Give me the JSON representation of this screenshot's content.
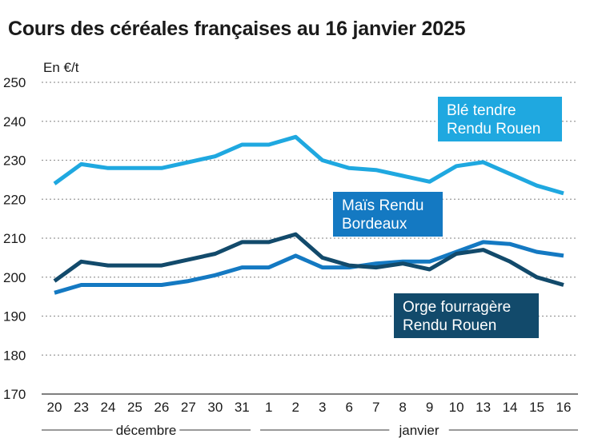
{
  "chart_data": {
    "type": "line",
    "title": "Cours des céréales françaises au 16 janvier 2025",
    "ylabel": "En €/t",
    "xlabel": "",
    "ylim": [
      170,
      250
    ],
    "yticks": [
      170,
      180,
      190,
      200,
      210,
      220,
      230,
      240,
      250
    ],
    "grid": true,
    "categories": [
      "20",
      "23",
      "24",
      "25",
      "26",
      "27",
      "30",
      "31",
      "1",
      "2",
      "3",
      "6",
      "7",
      "8",
      "9",
      "10",
      "13",
      "14",
      "15",
      "16"
    ],
    "months": [
      {
        "label": "décembre",
        "from": 0,
        "to": 7
      },
      {
        "label": "janvier",
        "from": 8,
        "to": 19
      }
    ],
    "series": [
      {
        "name": "Blé tendre Rendu Rouen",
        "label_lines": [
          "Blé tendre",
          "Rendu Rouen"
        ],
        "color": "#1fa8e0",
        "values": [
          224,
          229,
          228,
          228,
          228,
          229.5,
          231,
          234,
          234,
          236,
          230,
          228,
          227.5,
          226,
          224.5,
          228.5,
          229.5,
          226.5,
          223.5,
          221.5
        ]
      },
      {
        "name": "Maïs Rendu Bordeaux",
        "label_lines": [
          "Maïs Rendu",
          "Bordeaux"
        ],
        "color": "#1479c2",
        "values": [
          196,
          198,
          198,
          198,
          198,
          199,
          200.5,
          202.5,
          202.5,
          205.5,
          202.5,
          202.5,
          203.5,
          204,
          204,
          206.5,
          209,
          208.5,
          206.5,
          205.5
        ]
      },
      {
        "name": "Orge fourragère Rendu Rouen",
        "label_lines": [
          "Orge fourragère",
          "Rendu Rouen"
        ],
        "color": "#124a6b",
        "values": [
          199,
          204,
          203,
          203,
          203,
          204.5,
          206,
          209,
          209,
          211,
          205,
          203,
          202.5,
          203.5,
          202,
          206,
          207,
          204,
          200,
          198
        ]
      }
    ]
  }
}
